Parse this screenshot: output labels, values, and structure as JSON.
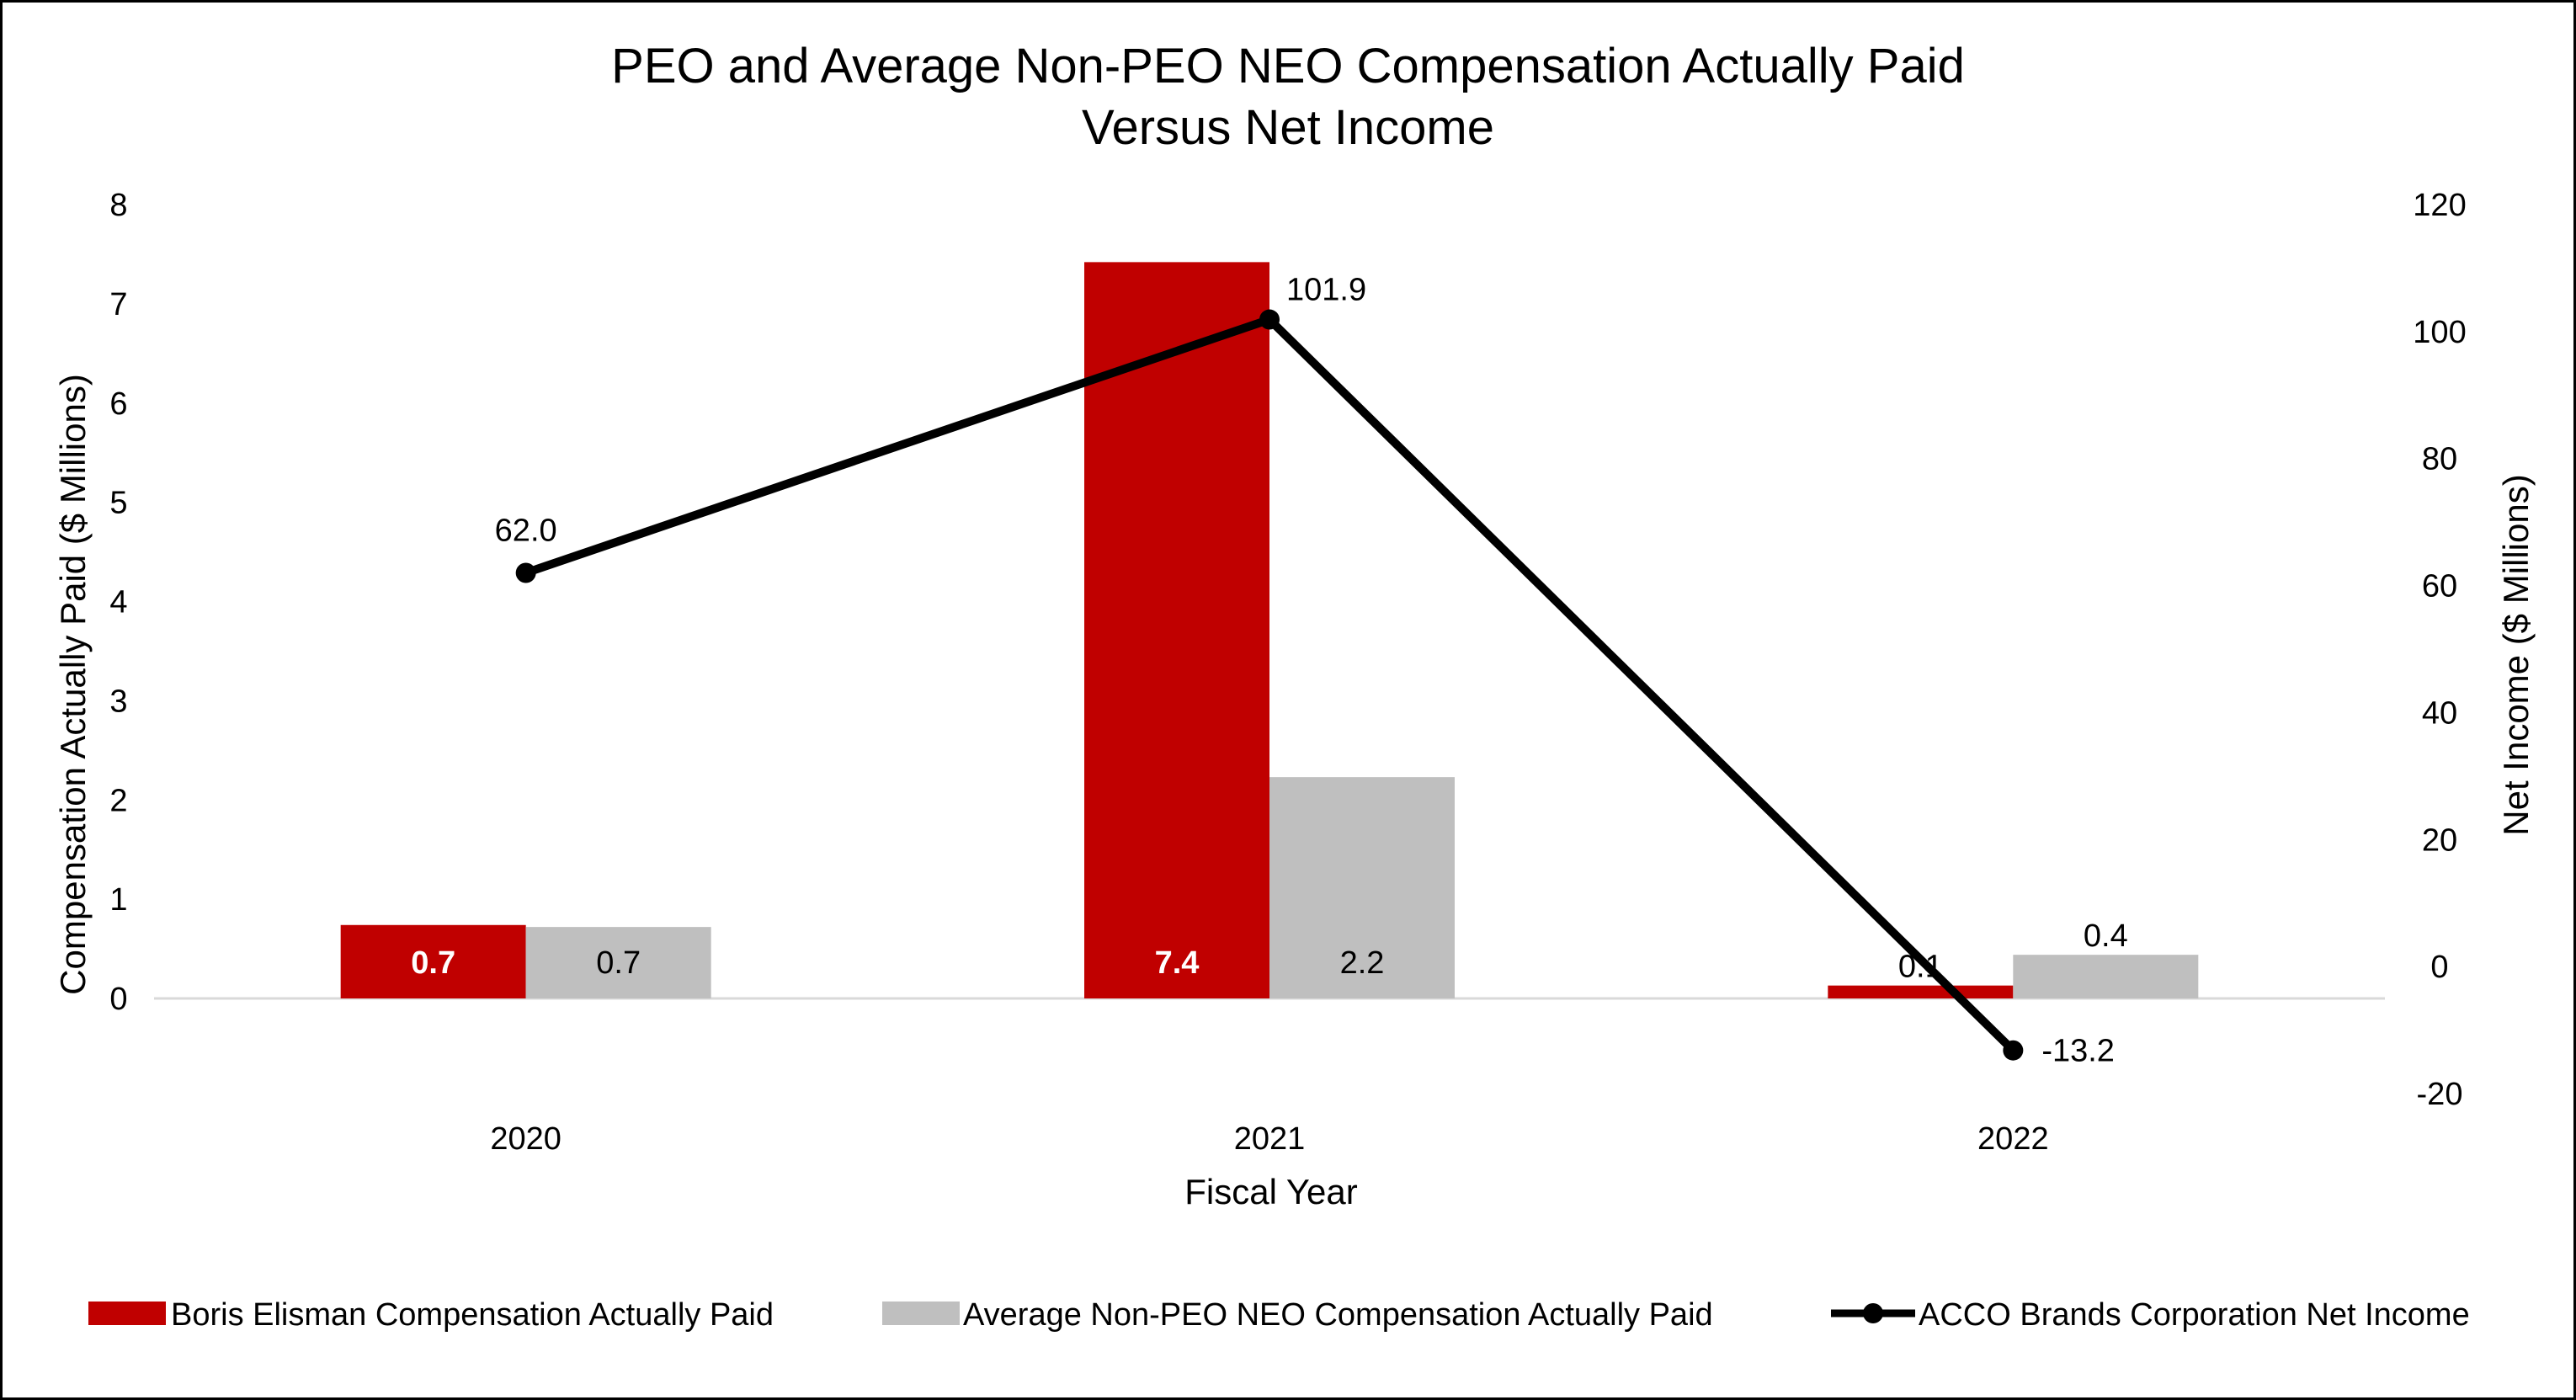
{
  "chart_data": {
    "type": "bar",
    "title": "PEO and Average Non-PEO NEO Compensation Actually Paid",
    "subtitle": "Versus Net Income",
    "xlabel": "Fiscal Year",
    "ylabel": "Compensation Actually Paid ($ Millions)",
    "y2label": "Net Income ($ Millions)",
    "categories": [
      "2020",
      "2021",
      "2022"
    ],
    "ylim": [
      0,
      8
    ],
    "yticks": [
      0,
      1,
      2,
      3,
      4,
      5,
      6,
      7,
      8
    ],
    "y2lim": [
      -20,
      120
    ],
    "y2ticks": [
      -20,
      0,
      20,
      40,
      60,
      80,
      100,
      120
    ],
    "grid": false,
    "legend_position": "bottom",
    "series": [
      {
        "name": "Boris Elisman Compensation Actually Paid",
        "type": "bar",
        "axis": "left",
        "color": "#C00000",
        "values": [
          0.74,
          7.42,
          0.13
        ],
        "labels": [
          "0.7",
          "7.4",
          "0.1"
        ]
      },
      {
        "name": "Average Non-PEO NEO Compensation Actually Paid",
        "type": "bar",
        "axis": "left",
        "color": "#BFBFBF",
        "values": [
          0.72,
          2.23,
          0.44
        ],
        "labels": [
          "0.7",
          "2.2",
          "0.4"
        ]
      },
      {
        "name": "ACCO Brands Corporation Net Income",
        "type": "line",
        "axis": "right",
        "color": "#000000",
        "values": [
          62.0,
          101.9,
          -13.2
        ],
        "labels": [
          "62.0",
          "101.9",
          "-13.2"
        ]
      }
    ]
  }
}
